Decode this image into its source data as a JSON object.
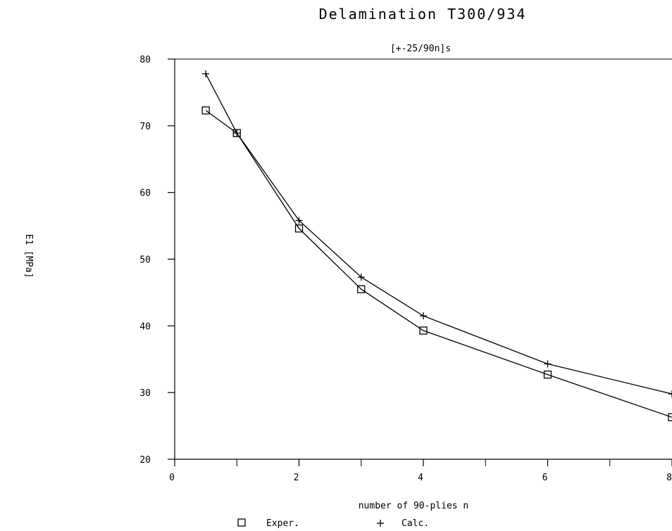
{
  "chart_data": {
    "type": "line",
    "title": "Delamination T300/934",
    "subtitle": "[+-25/90n]s",
    "xlabel": "number of 90-plies n",
    "ylabel": "E1 [MPa]",
    "xlim": [
      0,
      8
    ],
    "ylim": [
      20,
      80
    ],
    "xticks": [
      0,
      2,
      4,
      6,
      8
    ],
    "xtick_labels": [
      "0",
      "2",
      "4",
      "6",
      "8"
    ],
    "yticks": [
      20,
      30,
      40,
      50,
      60,
      70,
      80
    ],
    "ytick_labels": [
      "20",
      "30",
      "40",
      "50",
      "60",
      "70",
      "80"
    ],
    "grid": false,
    "legend_position": "bottom",
    "series": [
      {
        "name": "Exper.",
        "marker": "square",
        "x": [
          0.5,
          1,
          2,
          3,
          4,
          6,
          8
        ],
        "y": [
          72.3,
          68.9,
          54.6,
          45.5,
          39.3,
          32.7,
          26.3
        ]
      },
      {
        "name": "Calc.",
        "marker": "plus",
        "x": [
          0.5,
          1,
          2,
          3,
          4,
          6,
          8
        ],
        "y": [
          77.8,
          68.9,
          55.8,
          47.3,
          41.5,
          34.3,
          29.8
        ]
      }
    ]
  }
}
